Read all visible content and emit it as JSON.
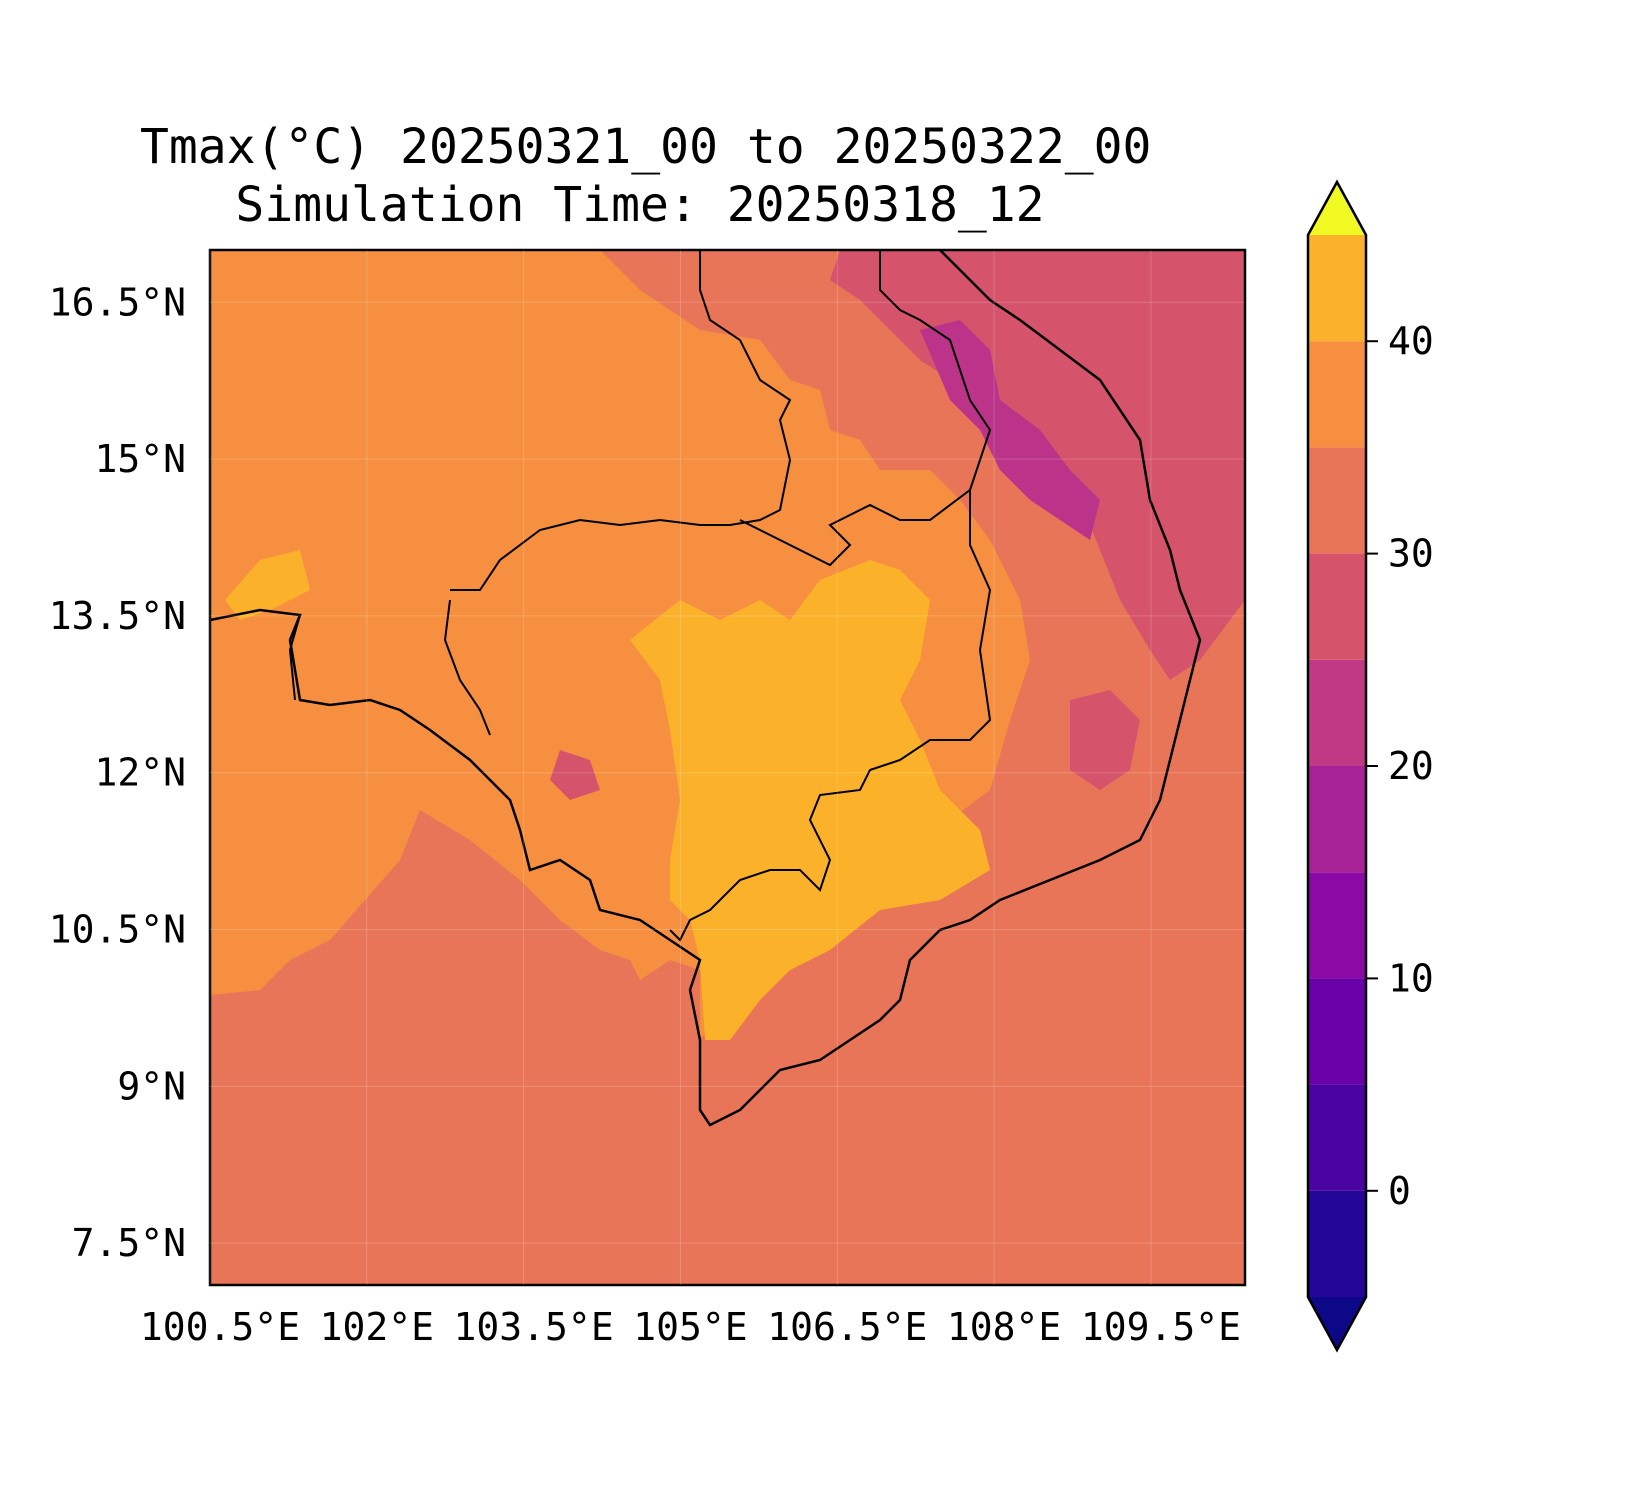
{
  "title": {
    "line1": "Tmax(°C) 20250321_00 to 20250322_00",
    "line2": "Simulation Time: 20250318_12"
  },
  "map": {
    "lat_ticks": [
      "16.5°N",
      "15°N",
      "13.5°N",
      "12°N",
      "10.5°N",
      "9°N",
      "7.5°N"
    ],
    "lon_ticks": [
      "100.5°E",
      "102°E",
      "103.5°E",
      "105°E",
      "106.5°E",
      "108°E",
      "109.5°E"
    ],
    "lat_values": [
      16.5,
      15,
      13.5,
      12,
      10.5,
      9,
      7.5
    ],
    "lon_values": [
      100.5,
      102,
      103.5,
      105,
      106.5,
      108,
      109.5
    ],
    "lat_range": [
      7.1,
      17.0
    ],
    "lon_range": [
      100.5,
      110.4
    ],
    "colors": {
      "below_28": "#e97558",
      "28_32": "#f69040",
      "32_36": "#fbb22a",
      "36_40": "#feca27",
      "18_24": "#d5536b",
      "14_18": "#bc3489",
      "land_outline": "#000000"
    }
  },
  "colorbar": {
    "ticks": [
      "40",
      "30",
      "20",
      "10",
      "0"
    ],
    "tick_values": [
      40,
      30,
      20,
      10,
      0
    ],
    "range": [
      -5,
      45
    ],
    "levels": [
      -5,
      0,
      5,
      10,
      15,
      20,
      25,
      30,
      35,
      40,
      45
    ],
    "level_colors": [
      "#240799",
      "#4b03a1",
      "#6a00a8",
      "#8b0aa5",
      "#a72197",
      "#bf3984",
      "#d5536b",
      "#e97558",
      "#f69040",
      "#fbb22a",
      "#f3e324"
    ],
    "under_color": "#0d0887",
    "over_color": "#f0f921",
    "extend": "both"
  }
}
